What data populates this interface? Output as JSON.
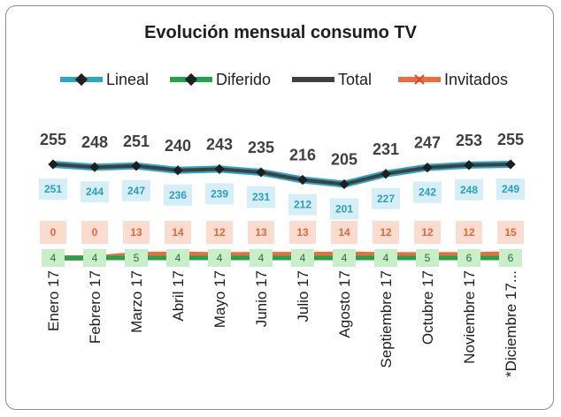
{
  "chart_data": {
    "type": "line",
    "title": "Evolución mensual consumo TV",
    "categories": [
      "Enero 17",
      "Febrero 17",
      "Marzo 17",
      "Abril 17",
      "Mayo 17",
      "Junio 17",
      "Julio 17",
      "Agosto 17",
      "Septiembre 17",
      "Octubre 17",
      "Noviembre 17",
      "*Diciembre 17..."
    ],
    "series": [
      {
        "name": "Lineal",
        "color": "#2aa6c6",
        "values": [
          251,
          244,
          247,
          236,
          239,
          231,
          212,
          201,
          227,
          242,
          248,
          249
        ]
      },
      {
        "name": "Diferido",
        "color": "#1fa64a",
        "values": [
          4,
          4,
          5,
          4,
          4,
          4,
          4,
          4,
          4,
          5,
          6,
          6
        ]
      },
      {
        "name": "Total",
        "color": "#404040",
        "values": [
          255,
          248,
          251,
          240,
          243,
          235,
          216,
          205,
          231,
          247,
          253,
          255
        ]
      },
      {
        "name": "Invitados",
        "color": "#ef6b3a",
        "values": [
          0,
          0,
          13,
          14,
          12,
          13,
          13,
          14,
          12,
          12,
          12,
          15
        ]
      }
    ],
    "label_colors": {
      "Lineal": {
        "bg": "#d6eef7",
        "text": "#2a9fc0"
      },
      "Diferido": {
        "bg": "#c9efc9",
        "text": "#2d6b3b"
      },
      "Invitados": {
        "bg": "#fbdcd0",
        "text": "#e2683b"
      },
      "Total": {
        "text": "#404040"
      }
    },
    "legend_position": "top",
    "grid": false
  }
}
